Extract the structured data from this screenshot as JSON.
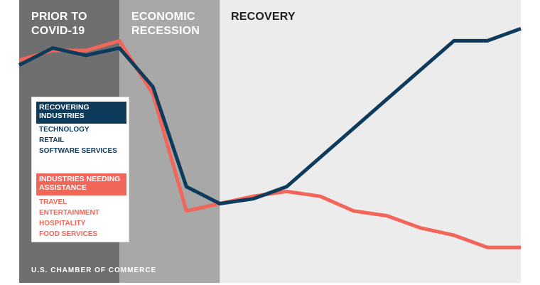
{
  "chart_data": {
    "type": "line",
    "title": "",
    "xlabel": "",
    "ylabel": "",
    "x": [
      0,
      1,
      2,
      3,
      4,
      5,
      6,
      7,
      8,
      9,
      10,
      11,
      12,
      13,
      14,
      15
    ],
    "xlim": [
      0,
      15
    ],
    "ylim": [
      0,
      100
    ],
    "grid": false,
    "phases": [
      {
        "label": "PRIOR TO\nCOVID-19",
        "x_start": 0,
        "x_end": 3,
        "color": "#6f6f6f"
      },
      {
        "label": "ECONOMIC\nRECESSION",
        "x_start": 3,
        "x_end": 6,
        "color": "#a8a8a8"
      },
      {
        "label": "RECOVERY",
        "x_start": 6,
        "x_end": 15,
        "color": "#ececec"
      }
    ],
    "series": [
      {
        "name": "RECOVERING\nINDUSTRIES",
        "color": "#0e3a5c",
        "values": [
          82,
          89,
          86,
          89,
          73,
          32,
          25,
          27,
          32,
          44,
          56,
          68,
          80,
          92,
          92,
          97
        ]
      },
      {
        "name": "INDUSTRIES NEEDING\nASSISTANCE",
        "color": "#f2665a",
        "values": [
          84,
          88,
          88,
          92,
          70,
          22,
          25,
          28,
          30,
          28,
          22,
          20,
          15,
          12,
          7,
          7
        ]
      }
    ],
    "legend": {
      "placement": "left",
      "groups": [
        {
          "heading": "RECOVERING\nINDUSTRIES",
          "color": "#0e3a5c",
          "items": [
            "TECHNOLOGY",
            "RETAIL",
            "SOFTWARE SERVICES"
          ]
        },
        {
          "heading": "INDUSTRIES NEEDING\nASSISTANCE",
          "color": "#f2665a",
          "items": [
            "TRAVEL",
            "ENTERTAINMENT",
            "HOSPITALITY",
            "FOOD SERVICES"
          ]
        }
      ]
    }
  },
  "source_text": "U.S. CHAMBER OF COMMERCE"
}
